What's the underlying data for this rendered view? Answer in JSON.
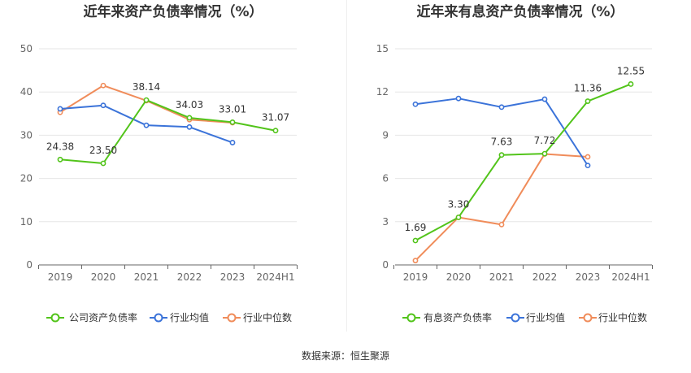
{
  "footer": {
    "source": "数据来源：恒生聚源"
  },
  "chart_data": [
    {
      "type": "line",
      "title": "近年来资产负债率情况（%）",
      "categories": [
        "2019",
        "2020",
        "2021",
        "2022",
        "2023",
        "2024H1"
      ],
      "y_ticks": [
        "0",
        "10",
        "20",
        "30",
        "40",
        "50"
      ],
      "ylim": [
        0,
        50
      ],
      "grid": true,
      "legend_position": "bottom",
      "series": [
        {
          "name": "公司资产负债率",
          "color": "#52c41a",
          "values": [
            24.38,
            23.5,
            38.14,
            34.03,
            33.01,
            31.07
          ],
          "labels": [
            "24.38",
            "23.50",
            "38.14",
            "34.03",
            "33.01",
            "31.07"
          ]
        },
        {
          "name": "行业均值",
          "color": "#3b73d9",
          "values": [
            36.1,
            36.9,
            32.3,
            31.9,
            28.3,
            null
          ]
        },
        {
          "name": "行业中位数",
          "color": "#f08c5a",
          "values": [
            35.3,
            41.5,
            38.0,
            33.6,
            32.9,
            null
          ]
        }
      ]
    },
    {
      "type": "line",
      "title": "近年来有息资产负债率情况（%）",
      "categories": [
        "2019",
        "2020",
        "2021",
        "2022",
        "2023",
        "2024H1"
      ],
      "y_ticks": [
        "0",
        "3",
        "6",
        "9",
        "12",
        "15"
      ],
      "ylim": [
        0,
        15
      ],
      "grid": true,
      "legend_position": "bottom",
      "series": [
        {
          "name": "有息资产负债率",
          "color": "#52c41a",
          "values": [
            1.69,
            3.3,
            7.63,
            7.72,
            11.36,
            12.55
          ],
          "labels": [
            "1.69",
            "3.30",
            "7.63",
            "7.72",
            "11.36",
            "12.55"
          ]
        },
        {
          "name": "行业均值",
          "color": "#3b73d9",
          "values": [
            11.15,
            11.55,
            10.95,
            11.5,
            6.9,
            null
          ]
        },
        {
          "name": "行业中位数",
          "color": "#f08c5a",
          "values": [
            0.3,
            3.3,
            2.8,
            7.7,
            7.5,
            null
          ]
        }
      ]
    }
  ]
}
